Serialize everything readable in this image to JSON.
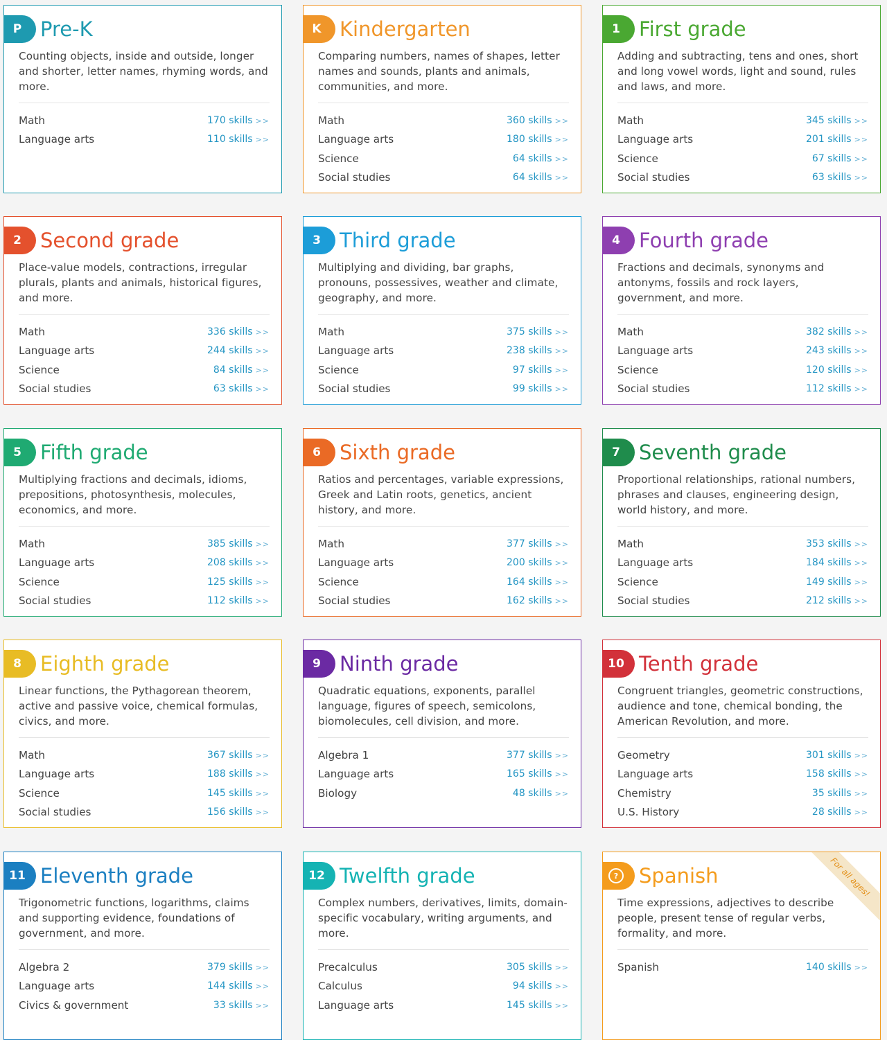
{
  "cards": [
    {
      "badge": "P",
      "title": "Pre-K",
      "color": "#1e9ab0",
      "desc": "Counting objects, inside and outside, longer and shorter, letter names, rhyming words, and more.",
      "subjects": [
        {
          "name": "Math",
          "skills": "170 skills"
        },
        {
          "name": "Language arts",
          "skills": "110 skills"
        }
      ]
    },
    {
      "badge": "K",
      "title": "Kindergarten",
      "color": "#f0962a",
      "desc": "Comparing numbers, names of shapes, letter names and sounds, plants and animals, communities, and more.",
      "subjects": [
        {
          "name": "Math",
          "skills": "360 skills"
        },
        {
          "name": "Language arts",
          "skills": "180 skills"
        },
        {
          "name": "Science",
          "skills": "64 skills"
        },
        {
          "name": "Social studies",
          "skills": "64 skills"
        }
      ]
    },
    {
      "badge": "1",
      "title": "First grade",
      "color": "#4aa832",
      "desc": "Adding and subtracting, tens and ones, short and long vowel words, light and sound, rules and laws, and more.",
      "subjects": [
        {
          "name": "Math",
          "skills": "345 skills"
        },
        {
          "name": "Language arts",
          "skills": "201 skills"
        },
        {
          "name": "Science",
          "skills": "67 skills"
        },
        {
          "name": "Social studies",
          "skills": "63 skills"
        }
      ]
    },
    {
      "badge": "2",
      "title": "Second grade",
      "color": "#e4512d",
      "desc": "Place-value models, contractions, irregular plurals, plants and animals, historical figures, and more.",
      "subjects": [
        {
          "name": "Math",
          "skills": "336 skills"
        },
        {
          "name": "Language arts",
          "skills": "244 skills"
        },
        {
          "name": "Science",
          "skills": "84 skills"
        },
        {
          "name": "Social studies",
          "skills": "63 skills"
        }
      ]
    },
    {
      "badge": "3",
      "title": "Third grade",
      "color": "#1c9dd8",
      "desc": "Multiplying and dividing, bar graphs, pronouns, possessives, weather and climate, geography, and more.",
      "subjects": [
        {
          "name": "Math",
          "skills": "375 skills"
        },
        {
          "name": "Language arts",
          "skills": "238 skills"
        },
        {
          "name": "Science",
          "skills": "97 skills"
        },
        {
          "name": "Social studies",
          "skills": "99 skills"
        }
      ]
    },
    {
      "badge": "4",
      "title": "Fourth grade",
      "color": "#8e3fb0",
      "desc": "Fractions and decimals, synonyms and antonyms, fossils and rock layers, government, and more.",
      "subjects": [
        {
          "name": "Math",
          "skills": "382 skills"
        },
        {
          "name": "Language arts",
          "skills": "243 skills"
        },
        {
          "name": "Science",
          "skills": "120 skills"
        },
        {
          "name": "Social studies",
          "skills": "112 skills"
        }
      ]
    },
    {
      "badge": "5",
      "title": "Fifth grade",
      "color": "#1faa72",
      "desc": "Multiplying fractions and decimals, idioms, prepositions, photosynthesis, molecules, economics, and more.",
      "subjects": [
        {
          "name": "Math",
          "skills": "385 skills"
        },
        {
          "name": "Language arts",
          "skills": "208 skills"
        },
        {
          "name": "Science",
          "skills": "125 skills"
        },
        {
          "name": "Social studies",
          "skills": "112 skills"
        }
      ]
    },
    {
      "badge": "6",
      "title": "Sixth grade",
      "color": "#ea6a25",
      "desc": "Ratios and percentages, variable expressions, Greek and Latin roots, genetics, ancient history, and more.",
      "subjects": [
        {
          "name": "Math",
          "skills": "377 skills"
        },
        {
          "name": "Language arts",
          "skills": "200 skills"
        },
        {
          "name": "Science",
          "skills": "164 skills"
        },
        {
          "name": "Social studies",
          "skills": "162 skills"
        }
      ]
    },
    {
      "badge": "7",
      "title": "Seventh grade",
      "color": "#1f8c4c",
      "desc": "Proportional relationships, rational numbers, phrases and clauses, engineering design, world history, and more.",
      "subjects": [
        {
          "name": "Math",
          "skills": "353 skills"
        },
        {
          "name": "Language arts",
          "skills": "184 skills"
        },
        {
          "name": "Science",
          "skills": "149 skills"
        },
        {
          "name": "Social studies",
          "skills": "212 skills"
        }
      ]
    },
    {
      "badge": "8",
      "title": "Eighth grade",
      "color": "#e8bc25",
      "desc": "Linear functions, the Pythagorean theorem, active and passive voice, chemical formulas, civics, and more.",
      "subjects": [
        {
          "name": "Math",
          "skills": "367 skills"
        },
        {
          "name": "Language arts",
          "skills": "188 skills"
        },
        {
          "name": "Science",
          "skills": "145 skills"
        },
        {
          "name": "Social studies",
          "skills": "156 skills"
        }
      ]
    },
    {
      "badge": "9",
      "title": "Ninth grade",
      "color": "#6b2aa3",
      "desc": "Quadratic equations, exponents, parallel language, figures of speech, semicolons, biomolecules, cell division, and more.",
      "subjects": [
        {
          "name": "Algebra 1",
          "skills": "377 skills"
        },
        {
          "name": "Language arts",
          "skills": "165 skills"
        },
        {
          "name": "Biology",
          "skills": "48 skills"
        }
      ]
    },
    {
      "badge": "10",
      "title": "Tenth grade",
      "color": "#d2313a",
      "desc": "Congruent triangles, geometric constructions, audience and tone, chemical bonding, the American Revolution, and more.",
      "subjects": [
        {
          "name": "Geometry",
          "skills": "301 skills"
        },
        {
          "name": "Language arts",
          "skills": "158 skills"
        },
        {
          "name": "Chemistry",
          "skills": "35 skills"
        },
        {
          "name": "U.S. History",
          "skills": "28 skills"
        }
      ]
    },
    {
      "badge": "11",
      "title": "Eleventh grade",
      "color": "#1b7fc1",
      "desc": "Trigonometric functions, logarithms, claims and supporting evidence, foundations of government, and more.",
      "subjects": [
        {
          "name": "Algebra 2",
          "skills": "379 skills"
        },
        {
          "name": "Language arts",
          "skills": "144 skills"
        },
        {
          "name": "Civics & government",
          "skills": "33 skills"
        }
      ]
    },
    {
      "badge": "12",
      "title": "Twelfth grade",
      "color": "#15b3b3",
      "desc": "Complex numbers, derivatives, limits, domain-specific vocabulary, writing arguments, and more.",
      "subjects": [
        {
          "name": "Precalculus",
          "skills": "305 skills"
        },
        {
          "name": "Calculus",
          "skills": "94 skills"
        },
        {
          "name": "Language arts",
          "skills": "145 skills"
        }
      ]
    },
    {
      "badge": "?",
      "title": "Spanish",
      "color": "#f49c1d",
      "desc": "Time expressions, adjectives to describe people, present tense of regular verbs, formality, and more.",
      "subjects": [
        {
          "name": "Spanish",
          "skills": "140 skills"
        }
      ],
      "ribbon": "For all ages!"
    }
  ],
  "link_arrow": ">>"
}
